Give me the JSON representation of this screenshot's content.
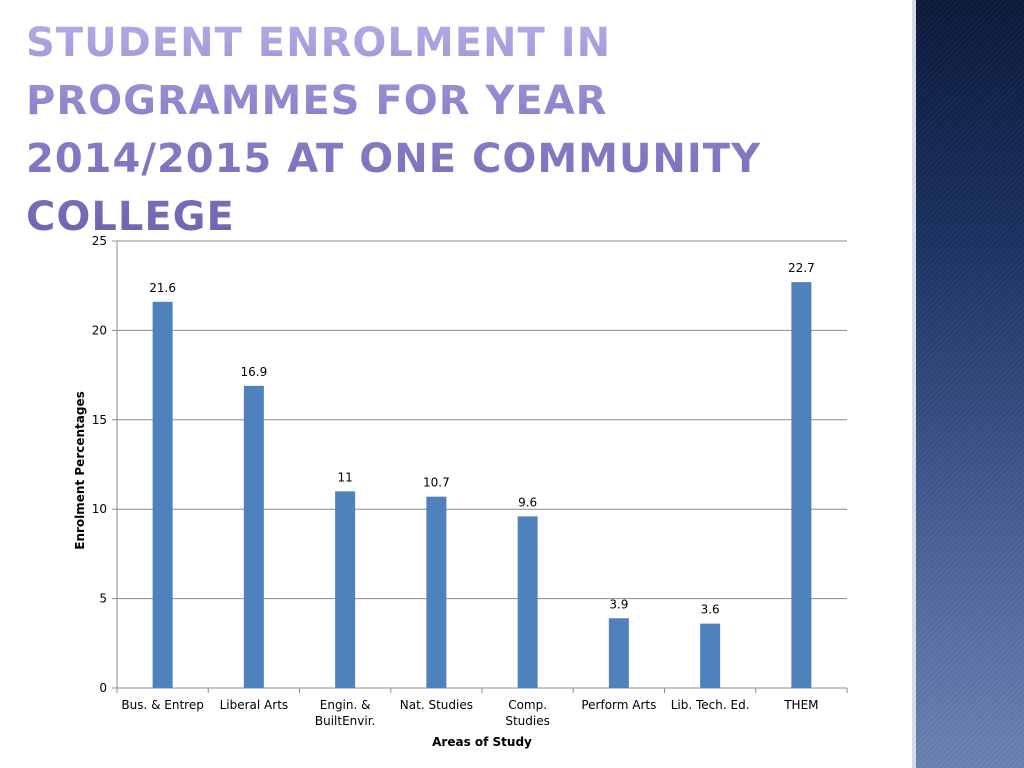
{
  "slide": {
    "title": "Student Enrolment in Programmes for Year 2014/2015 at One Community College"
  },
  "chart_data": {
    "type": "bar",
    "categories": [
      [
        "Bus. & Entrep"
      ],
      [
        "Liberal Arts"
      ],
      [
        "Engin. &",
        "BuiltEnvir."
      ],
      [
        "Nat. Studies"
      ],
      [
        "Comp.",
        "Studies"
      ],
      [
        "Perform Arts"
      ],
      [
        "Lib. Tech. Ed."
      ],
      [
        "THEM"
      ]
    ],
    "values": [
      21.6,
      16.9,
      11,
      10.7,
      9.6,
      3.9,
      3.6,
      22.7
    ],
    "data_labels": [
      "21.6",
      "16.9",
      "11",
      "10.7",
      "9.6",
      "3.9",
      "3.6",
      "22.7"
    ],
    "xlabel": "Areas of Study",
    "ylabel": "Enrolment Percentages",
    "ylim": [
      0,
      25
    ],
    "yticks": [
      0,
      5,
      10,
      15,
      20,
      25
    ],
    "grid": true,
    "legend": "none",
    "bar_color": "#4f81bd",
    "grid_color": "#8c8c8c"
  }
}
